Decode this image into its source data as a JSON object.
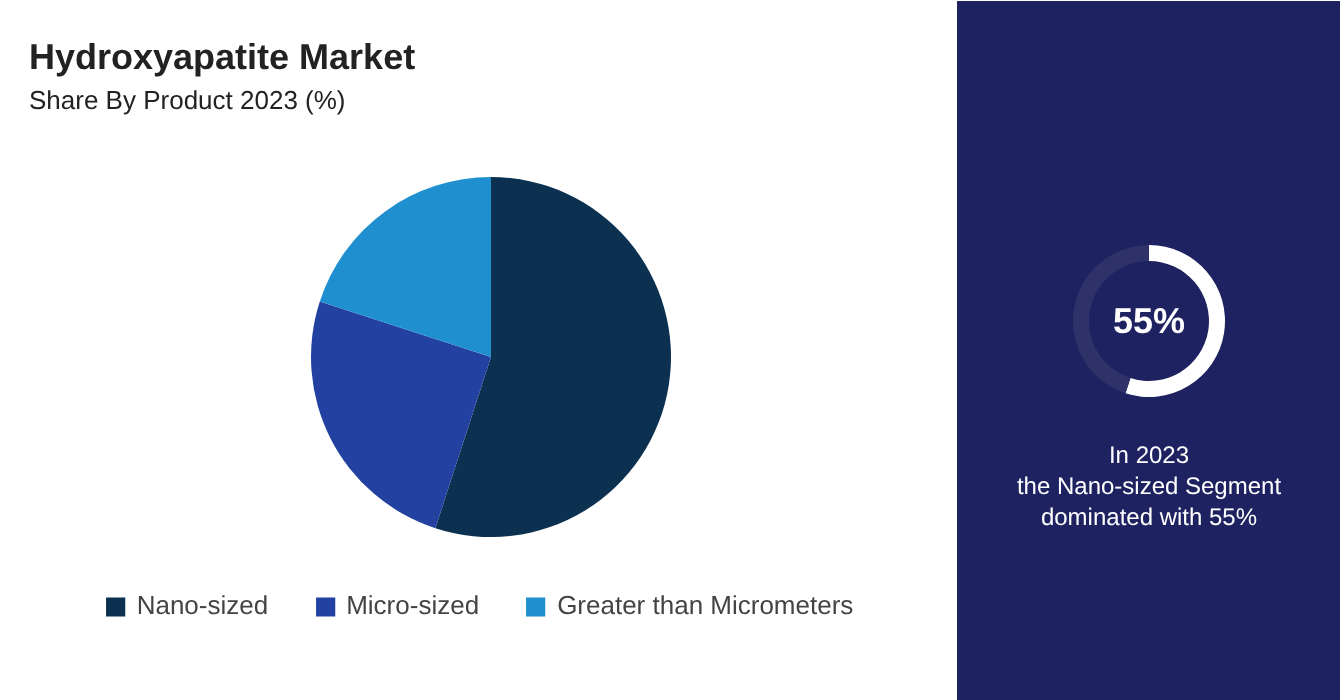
{
  "chart_data": [
    {
      "type": "pie",
      "title": "Hydroxyapatite Market",
      "subtitle": "Share By Product 2023 (%)",
      "categories": [
        "Nano-sized",
        "Micro-sized",
        "Greater than Micrometers"
      ],
      "values": [
        55,
        25,
        20
      ],
      "colors": [
        "#0b3050",
        "#2241a0",
        "#1f8fd0"
      ],
      "legend": "bottom"
    },
    {
      "type": "donut",
      "categories": [
        null,
        null
      ],
      "values": [
        55,
        45
      ],
      "colors": [
        "#ffffff",
        "#2e3268"
      ],
      "value_labels": [
        "55%",
        null
      ],
      "annotations": [
        "In 2023\nthe Nano-sized Segment\ndominated with 55%"
      ]
    }
  ]
}
